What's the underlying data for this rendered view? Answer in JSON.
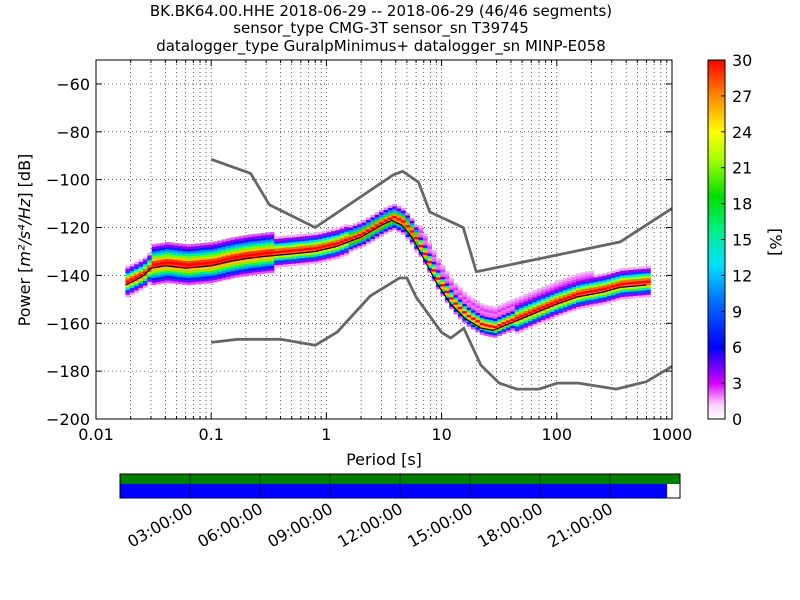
{
  "chart_data": {
    "type": "heatmap",
    "title_lines": [
      "BK.BK64.00.HHE   2018-06-29 -- 2018-06-29  (46/46 segments)",
      "sensor_type CMG-3T sensor_sn T39745",
      "datalogger_type GuralpMinimus+ datalogger_sn MINP-E058"
    ],
    "xlabel": "Period [s]",
    "ylabel_prefix": "Power [",
    "ylabel_units": "m²/s⁴/Hz",
    "ylabel_suffix": "] [dB]",
    "x_scale": "log",
    "xlim": [
      0.01,
      1000
    ],
    "ylim": [
      -200,
      -50
    ],
    "x_ticks": [
      0.01,
      0.1,
      1,
      10,
      100,
      1000
    ],
    "x_tick_labels": [
      "0.01",
      "0.1",
      "1",
      "10",
      "100",
      "1000"
    ],
    "y_ticks": [
      -200,
      -180,
      -160,
      -140,
      -120,
      -100,
      -80,
      -60
    ],
    "y_tick_labels": [
      "−200",
      "−180",
      "−160",
      "−140",
      "−120",
      "−100",
      "−80",
      "−60"
    ],
    "grid": "dotted",
    "colorbar": {
      "label": "[%]",
      "range": [
        0,
        30
      ],
      "ticks": [
        0,
        3,
        6,
        9,
        12,
        15,
        18,
        21,
        24,
        27,
        30
      ],
      "colormap": "pqlx"
    },
    "noise_models": {
      "nhnm": {
        "x": [
          0.1,
          0.22,
          0.32,
          0.8,
          3.8,
          4.6,
          6.3,
          7.9,
          15.4,
          20,
          354.8,
          1000
        ],
        "y": [
          -91.5,
          -97.4,
          -110.5,
          -120,
          -98,
          -96.5,
          -101,
          -113.5,
          -120,
          -138.5,
          -126,
          -112
        ]
      },
      "nlnm": {
        "x": [
          0.1,
          0.17,
          0.4,
          0.8,
          1.24,
          2.4,
          4.3,
          5,
          6,
          10,
          12,
          15.6,
          21.9,
          31.6,
          45,
          70,
          101,
          154,
          328,
          600,
          1000
        ],
        "y": [
          -168,
          -166.7,
          -166.7,
          -169.2,
          -163.7,
          -148.6,
          -141.1,
          -141.1,
          -149,
          -163.8,
          -166.2,
          -162.1,
          -177.5,
          -185,
          -187.5,
          -187.5,
          -185,
          -185,
          -187.5,
          -184.4,
          -178
        ]
      }
    },
    "mode_curve": {
      "x": [
        0.018,
        0.022,
        0.026,
        0.03,
        0.04,
        0.06,
        0.1,
        0.15,
        0.2,
        0.3,
        0.5,
        0.8,
        1.2,
        2,
        3,
        3.7,
        4.5,
        5.5,
        7,
        9,
        12,
        16,
        22,
        28,
        35,
        50,
        70,
        100,
        150,
        250,
        350,
        600
      ],
      "y": [
        -144,
        -142,
        -140,
        -137,
        -136,
        -137,
        -136,
        -134,
        -133,
        -132,
        -131,
        -130,
        -128,
        -124,
        -119,
        -117,
        -119,
        -124,
        -133,
        -143,
        -152,
        -158,
        -162,
        -163,
        -161,
        -158,
        -155,
        -152,
        -149,
        -147,
        -145,
        -144
      ]
    },
    "segments_bar": {
      "time_labels": [
        "03:00:00",
        "06:00:00",
        "09:00:00",
        "12:00:00",
        "15:00:00",
        "18:00:00",
        "21:00:00"
      ],
      "data_available_fraction": 1.0,
      "segments_used_fraction": 0.977,
      "colors": {
        "available": "#008000",
        "used": "#0000ff"
      }
    }
  }
}
